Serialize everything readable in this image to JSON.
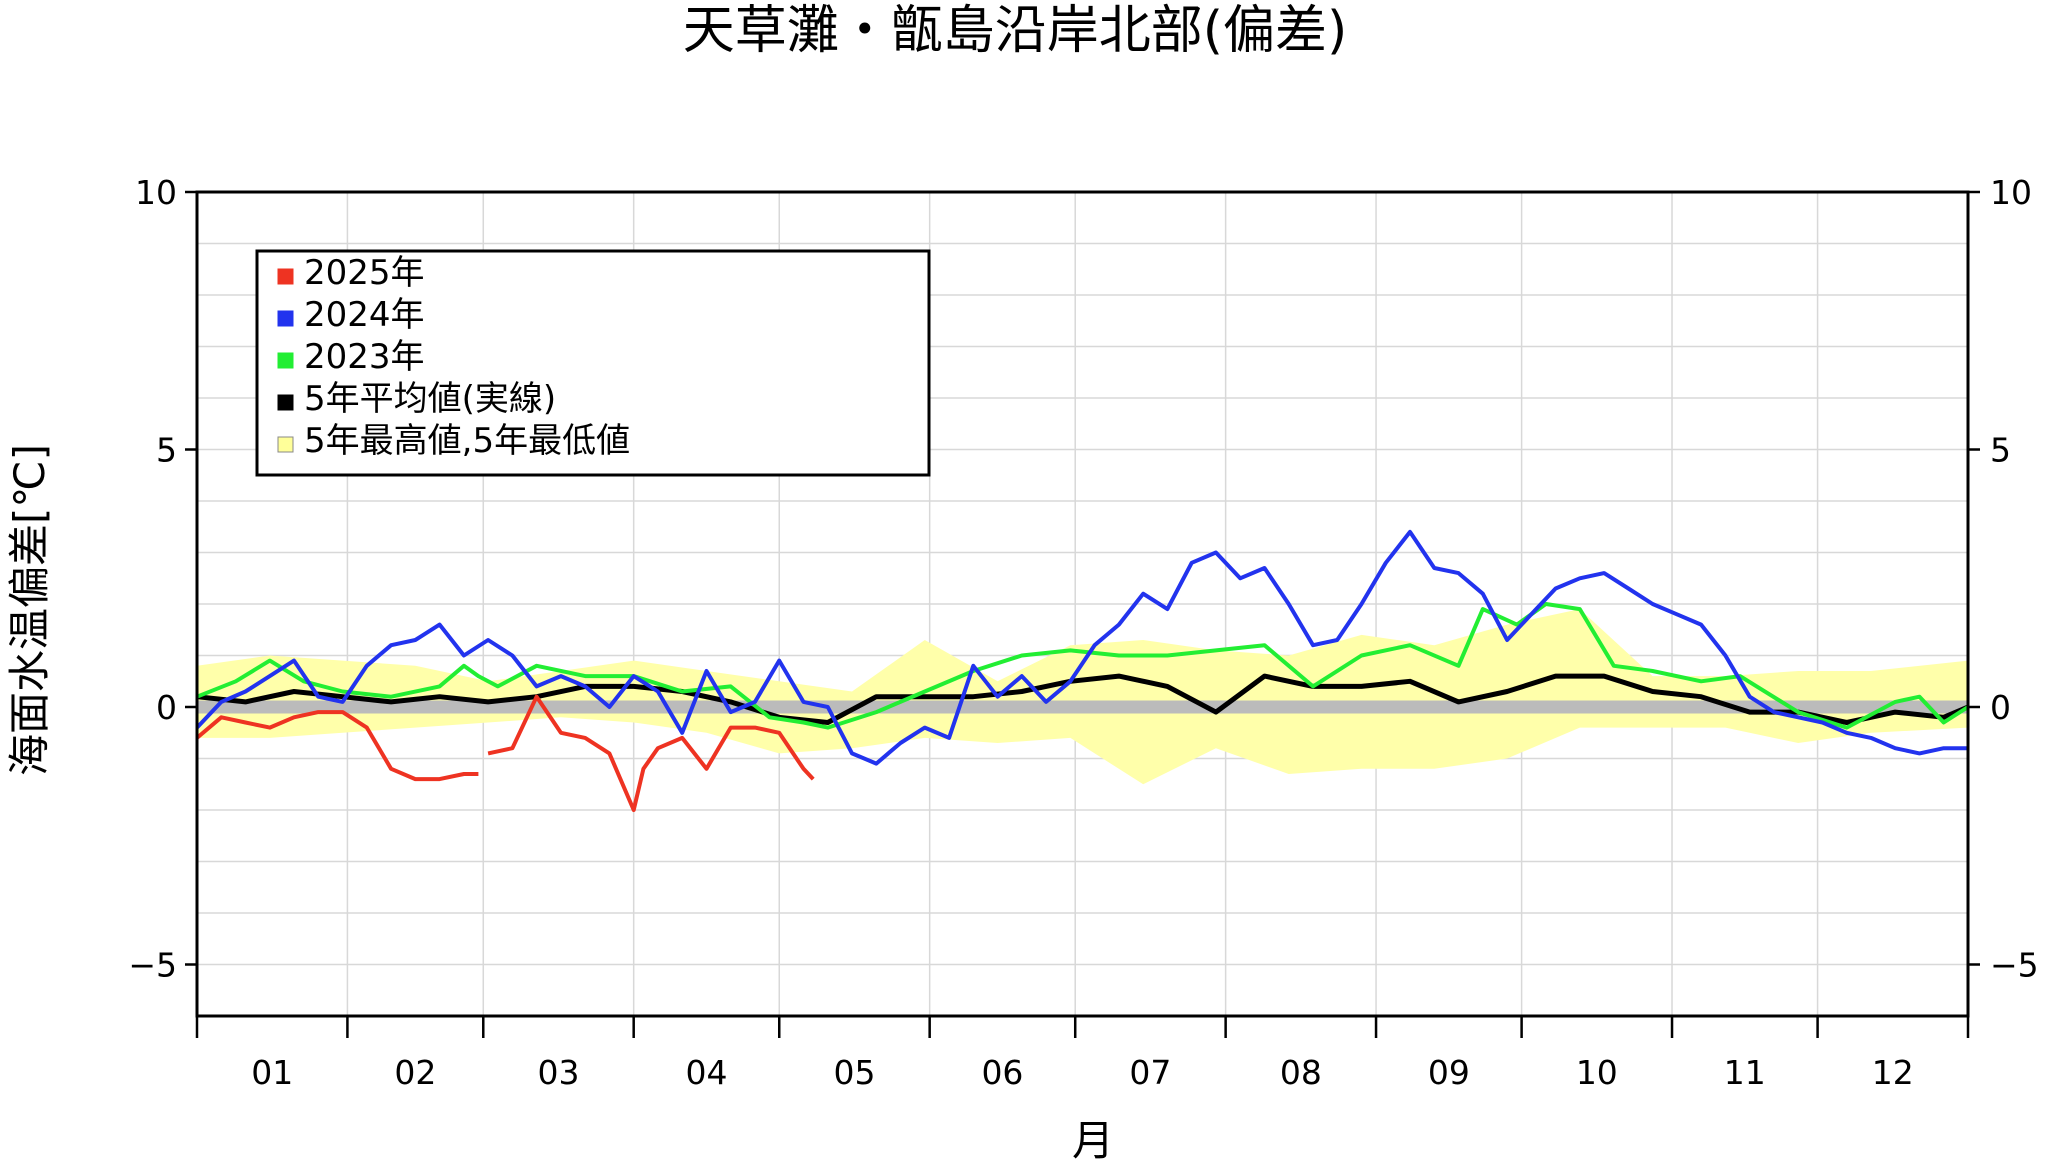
{
  "chart_data": {
    "type": "line",
    "title": "天草灘・甑島沿岸北部(偏差)",
    "xlabel": "月",
    "ylabel": "海面水温偏差[℃]",
    "ylim": [
      -6,
      10
    ],
    "xlim": [
      0,
      365
    ],
    "y_tick_labels": [
      "10",
      "5",
      "0",
      "−5"
    ],
    "y_tick_values": [
      10,
      5,
      0,
      -5
    ],
    "x_tick_labels": [
      "01",
      "02",
      "03",
      "04",
      "05",
      "06",
      "07",
      "08",
      "09",
      "10",
      "11",
      "12"
    ],
    "x_unit": "day of year",
    "grid": true,
    "legend_position": "top-left",
    "legend": [
      {
        "label": "2025年",
        "color": "#ee3322"
      },
      {
        "label": "2024年",
        "color": "#2233ee"
      },
      {
        "label": "2023年",
        "color": "#22ee33"
      },
      {
        "label": "5年平均値(実線)",
        "color": "#000000"
      },
      {
        "label": "5年最高値,5年最低値",
        "color": "#ffff99"
      }
    ],
    "band": {
      "name": "5年最高値,5年最低値",
      "color": "#ffffaa",
      "x": [
        0,
        15,
        30,
        45,
        60,
        75,
        90,
        105,
        120,
        135,
        150,
        165,
        180,
        195,
        210,
        225,
        240,
        255,
        270,
        285,
        300,
        315,
        330,
        345,
        365
      ],
      "high": [
        0.8,
        1.0,
        0.9,
        0.8,
        0.5,
        0.7,
        0.9,
        0.7,
        0.5,
        0.3,
        1.3,
        0.5,
        1.2,
        1.3,
        1.1,
        1.0,
        1.4,
        1.2,
        1.6,
        1.9,
        0.6,
        0.6,
        0.7,
        0.7,
        0.9
      ],
      "low": [
        -0.6,
        -0.6,
        -0.5,
        -0.4,
        -0.3,
        -0.2,
        -0.3,
        -0.5,
        -0.9,
        -0.8,
        -0.6,
        -0.7,
        -0.6,
        -1.5,
        -0.8,
        -1.3,
        -1.2,
        -1.2,
        -1.0,
        -0.4,
        -0.4,
        -0.4,
        -0.7,
        -0.5,
        -0.4
      ]
    },
    "series": [
      {
        "name": "5年平均値(実線)",
        "color": "#000000",
        "width": 5,
        "x": [
          0,
          10,
          20,
          30,
          40,
          50,
          60,
          70,
          80,
          90,
          100,
          110,
          120,
          130,
          140,
          150,
          160,
          170,
          180,
          190,
          200,
          210,
          220,
          230,
          240,
          250,
          260,
          270,
          280,
          290,
          300,
          310,
          320,
          330,
          340,
          350,
          360,
          365
        ],
        "y": [
          0.2,
          0.1,
          0.3,
          0.2,
          0.1,
          0.2,
          0.1,
          0.2,
          0.4,
          0.4,
          0.3,
          0.1,
          -0.2,
          -0.3,
          0.2,
          0.2,
          0.2,
          0.3,
          0.5,
          0.6,
          0.4,
          -0.1,
          0.6,
          0.4,
          0.4,
          0.5,
          0.1,
          0.3,
          0.6,
          0.6,
          0.3,
          0.2,
          -0.1,
          -0.1,
          -0.3,
          -0.1,
          -0.2,
          0.0
        ]
      },
      {
        "name": "2023年",
        "color": "#22ee33",
        "width": 4,
        "x": [
          0,
          8,
          15,
          22,
          30,
          40,
          50,
          55,
          58,
          62,
          70,
          80,
          90,
          100,
          110,
          118,
          125,
          130,
          140,
          150,
          160,
          170,
          180,
          190,
          200,
          210,
          220,
          230,
          240,
          250,
          260,
          265,
          272,
          278,
          285,
          292,
          300,
          310,
          318,
          330,
          340,
          350,
          355,
          360,
          365
        ],
        "y": [
          0.2,
          0.5,
          0.9,
          0.5,
          0.3,
          0.2,
          0.4,
          0.8,
          0.6,
          0.4,
          0.8,
          0.6,
          0.6,
          0.3,
          0.4,
          -0.2,
          -0.3,
          -0.4,
          -0.1,
          0.3,
          0.7,
          1.0,
          1.1,
          1.0,
          1.0,
          1.1,
          1.2,
          0.4,
          1.0,
          1.2,
          0.8,
          1.9,
          1.6,
          2.0,
          1.9,
          0.8,
          0.7,
          0.5,
          0.6,
          -0.1,
          -0.4,
          0.1,
          0.2,
          -0.3,
          0.0
        ]
      },
      {
        "name": "2024年",
        "color": "#2233ee",
        "width": 4,
        "x": [
          0,
          5,
          10,
          15,
          20,
          25,
          30,
          35,
          40,
          45,
          50,
          55,
          60,
          65,
          70,
          75,
          80,
          85,
          90,
          95,
          100,
          105,
          110,
          115,
          120,
          125,
          130,
          135,
          140,
          145,
          150,
          155,
          160,
          165,
          170,
          175,
          180,
          185,
          190,
          195,
          200,
          205,
          210,
          215,
          220,
          225,
          230,
          235,
          240,
          245,
          250,
          255,
          260,
          265,
          270,
          275,
          280,
          285,
          290,
          295,
          300,
          305,
          310,
          315,
          320,
          325,
          330,
          335,
          340,
          345,
          350,
          355,
          360,
          365
        ],
        "y": [
          -0.4,
          0.1,
          0.3,
          0.6,
          0.9,
          0.2,
          0.1,
          0.8,
          1.2,
          1.3,
          1.6,
          1.0,
          1.3,
          1.0,
          0.4,
          0.6,
          0.4,
          0.0,
          0.6,
          0.3,
          -0.5,
          0.7,
          -0.1,
          0.1,
          0.9,
          0.1,
          0.0,
          -0.9,
          -1.1,
          -0.7,
          -0.4,
          -0.6,
          0.8,
          0.2,
          0.6,
          0.1,
          0.5,
          1.2,
          1.6,
          2.2,
          1.9,
          2.8,
          3.0,
          2.5,
          2.7,
          2.0,
          1.2,
          1.3,
          2.0,
          2.8,
          3.4,
          2.7,
          2.6,
          2.2,
          1.3,
          1.8,
          2.3,
          2.5,
          2.6,
          2.3,
          2.0,
          1.8,
          1.6,
          1.0,
          0.2,
          -0.1,
          -0.2,
          -0.3,
          -0.5,
          -0.6,
          -0.8,
          -0.9,
          -0.8,
          -0.8
        ]
      },
      {
        "name": "2025年",
        "color": "#ee3322",
        "width": 4,
        "segments": [
          {
            "x": [
              0,
              5,
              10,
              15,
              20,
              25,
              30,
              35,
              40,
              45,
              50,
              55,
              58
            ],
            "y": [
              -0.6,
              -0.2,
              -0.3,
              -0.4,
              -0.2,
              -0.1,
              -0.1,
              -0.4,
              -1.2,
              -1.4,
              -1.4,
              -1.3,
              -1.3
            ]
          },
          {
            "x": [
              60,
              65,
              70,
              75,
              80,
              85,
              90,
              92,
              95,
              100,
              105,
              110,
              115,
              120,
              125,
              127
            ],
            "y": [
              -0.9,
              -0.8,
              0.2,
              -0.5,
              -0.6,
              -0.9,
              -2.0,
              -1.2,
              -0.8,
              -0.6,
              -1.2,
              -0.4,
              -0.4,
              -0.5,
              -1.2,
              -1.4
            ]
          }
        ]
      }
    ]
  }
}
